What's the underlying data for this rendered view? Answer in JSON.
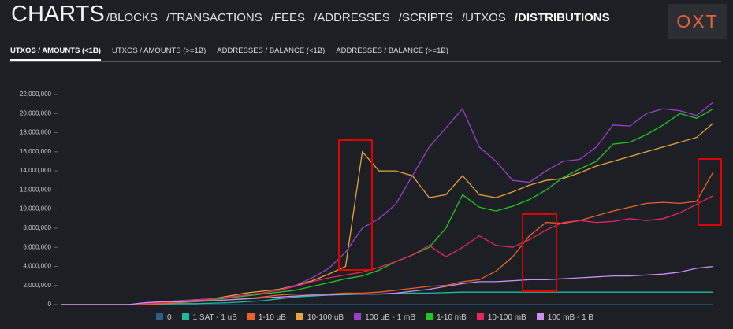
{
  "header": {
    "title": "CHARTS",
    "logo": "OXT",
    "nav": [
      "/BLOCKS",
      "/TRANSACTIONS",
      "/FEES",
      "/ADDRESSES",
      "/SCRIPTS",
      "/UTXOS",
      "/DISTRIBUTIONS"
    ],
    "nav_active": 6
  },
  "tabs": {
    "items": [
      "UTXOS / AMOUNTS (<1Ƀ)",
      "UTXOS / AMOUNTS (>=1Ƀ)",
      "ADDRESSES / BALANCE (<1Ƀ)",
      "ADDRESSES / BALANCE (>=1Ƀ)"
    ],
    "active": 0
  },
  "chart_data": {
    "type": "line",
    "ylim": [
      0,
      22000000
    ],
    "yticks": [
      {
        "value": 0,
        "label": "0"
      },
      {
        "value": 2000000,
        "label": "2,000,000"
      },
      {
        "value": 4000000,
        "label": "4,000,000"
      },
      {
        "value": 6000000,
        "label": "6,000,000"
      },
      {
        "value": 8000000,
        "label": "8,000,000"
      },
      {
        "value": 10000000,
        "label": "10,000,000"
      },
      {
        "value": 12000000,
        "label": "12,000,000"
      },
      {
        "value": 14000000,
        "label": "14,000,000"
      },
      {
        "value": 16000000,
        "label": "16,000,000"
      },
      {
        "value": 18000000,
        "label": "18,000,000"
      },
      {
        "value": 20000000,
        "label": "20,000,000"
      },
      {
        "value": 22000000,
        "label": "22,000,000"
      }
    ],
    "series": [
      {
        "name": "0",
        "color": "#2c5d8a",
        "values": [
          0,
          0,
          0,
          0,
          0,
          0,
          0,
          0,
          0,
          0,
          0,
          0,
          0,
          0,
          0,
          0,
          0,
          0,
          0,
          0,
          0,
          0,
          0,
          0,
          0,
          0,
          0,
          0,
          0,
          0,
          0,
          0,
          0,
          0,
          0,
          0,
          0,
          0,
          0,
          0
        ]
      },
      {
        "name": "1 SAT - 1 uB",
        "color": "#1abc9c",
        "values": [
          0,
          0,
          0,
          0,
          0,
          0,
          50000.0,
          100000.0,
          100000.0,
          150000.0,
          200000.0,
          300000.0,
          400000.0,
          600000.0,
          800000.0,
          900000.0,
          1000000.0,
          1050000.0,
          1100000.0,
          1100000.0,
          1150000.0,
          1200000.0,
          1200000.0,
          1250000.0,
          1300000.0,
          1300000.0,
          1300000.0,
          1300000.0,
          1300000.0,
          1300000.0,
          1300000.0,
          1300000.0,
          1300000.0,
          1300000.0,
          1300000.0,
          1300000.0,
          1300000.0,
          1300000.0,
          1300000.0,
          1300000.0
        ]
      },
      {
        "name": "1-10 uB",
        "color": "#e8602c",
        "values": [
          0,
          0,
          0,
          0,
          0,
          0,
          100000.0,
          200000.0,
          300000.0,
          400000.0,
          500000.0,
          600000.0,
          800000.0,
          1000000.0,
          1100000.0,
          1100000.0,
          1100000.0,
          1200000.0,
          1200000.0,
          1300000.0,
          1500000.0,
          1700000.0,
          1900000.0,
          2000000.0,
          2400000.0,
          2600000.0,
          3500000.0,
          5000000.0,
          7200000.0,
          8600000.0,
          8500000.0,
          8800000.0,
          9300000.0,
          9800000.0,
          10200000.0,
          10600000.0,
          10700000.0,
          10600000.0,
          10800000.0,
          13900000.0
        ]
      },
      {
        "name": "10-100 uB",
        "color": "#e8a33c",
        "values": [
          0,
          0,
          0,
          0,
          0,
          100000.0,
          300000.0,
          400000.0,
          500000.0,
          600000.0,
          900000.0,
          1200000.0,
          1400000.0,
          1600000.0,
          2000000.0,
          2500000.0,
          3200000.0,
          4000000.0,
          16000000.0,
          14000000.0,
          14000000.0,
          13500000.0,
          11200000.0,
          11500000.0,
          13500000.0,
          11500000.0,
          11200000.0,
          11800000.0,
          12500000.0,
          13000000.0,
          13200000.0,
          13800000.0,
          14500000.0,
          15000000.0,
          15500000.0,
          16000000.0,
          16500000.0,
          17000000.0,
          17500000.0,
          19000000.0
        ]
      },
      {
        "name": "100 uB - 1 mB",
        "color": "#9b3fc4",
        "values": [
          0,
          0,
          0,
          0,
          0,
          200000.0,
          300000.0,
          400000.0,
          500000.0,
          600000.0,
          800000.0,
          1000000.0,
          1200000.0,
          1500000.0,
          2000000.0,
          2800000.0,
          3800000.0,
          5500000.0,
          8000000.0,
          9000000.0,
          10500000.0,
          13500000.0,
          16500000.0,
          18500000.0,
          20500000.0,
          16500000.0,
          15000000.0,
          13000000.0,
          12800000.0,
          14000000.0,
          15000000.0,
          15200000.0,
          16500000.0,
          18800000.0,
          18700000.0,
          20000000.0,
          20500000.0,
          20300000.0,
          19800000.0,
          21200000.0
        ]
      },
      {
        "name": "1-10 mB",
        "color": "#22c522",
        "values": [
          0,
          0,
          0,
          0,
          0,
          100000.0,
          200000.0,
          300000.0,
          400000.0,
          500000.0,
          700000.0,
          900000.0,
          1100000.0,
          1300000.0,
          1500000.0,
          1900000.0,
          2300000.0,
          2700000.0,
          3000000.0,
          3600000.0,
          4500000.0,
          5200000.0,
          6000000.0,
          8000000.0,
          11500000.0,
          10200000.0,
          9800000.0,
          10300000.0,
          11000000.0,
          12000000.0,
          13300000.0,
          14200000.0,
          15000000.0,
          16800000.0,
          17000000.0,
          17800000.0,
          18800000.0,
          20000000.0,
          19500000.0,
          20500000.0
        ]
      },
      {
        "name": "10-100 mB",
        "color": "#e8265e",
        "values": [
          0,
          0,
          0,
          0,
          0,
          100000.0,
          200000.0,
          300000.0,
          400000.0,
          600000.0,
          800000.0,
          1000000.0,
          1200000.0,
          1500000.0,
          1900000.0,
          2400000.0,
          2800000.0,
          3100000.0,
          3400000.0,
          3900000.0,
          4500000.0,
          5200000.0,
          6200000.0,
          5000000.0,
          6000000.0,
          7200000.0,
          6200000.0,
          6000000.0,
          6800000.0,
          7800000.0,
          8600000.0,
          8800000.0,
          8600000.0,
          8700000.0,
          9000000.0,
          8800000.0,
          9000000.0,
          9600000.0,
          10500000.0,
          11400000.0
        ]
      },
      {
        "name": "100 mB - 1 Ƀ",
        "color": "#c98ef0",
        "values": [
          0,
          0,
          0,
          0,
          0,
          200000.0,
          300000.0,
          300000.0,
          400000.0,
          400000.0,
          500000.0,
          600000.0,
          700000.0,
          800000.0,
          900000.0,
          1000000.0,
          1000000.0,
          1100000.0,
          1100000.0,
          1100000.0,
          1200000.0,
          1400000.0,
          1600000.0,
          1900000.0,
          2200000.0,
          2400000.0,
          2400000.0,
          2500000.0,
          2600000.0,
          2600000.0,
          2700000.0,
          2800000.0,
          2900000.0,
          3000000.0,
          3000000.0,
          3100000.0,
          3200000.0,
          3400000.0,
          3800000.0,
          4000000.0
        ]
      }
    ]
  }
}
